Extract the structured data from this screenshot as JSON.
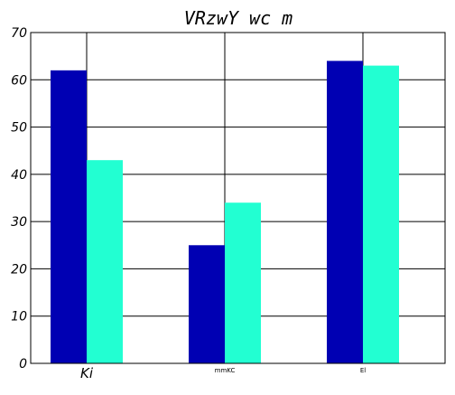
{
  "chart_data": {
    "type": "bar",
    "title": "VRzwY  wc m",
    "xlabel": "",
    "ylabel": "",
    "categories": [
      "Ki",
      "mmKC",
      "El"
    ],
    "series": [
      {
        "values": [
          62,
          25,
          64
        ],
        "color": "#0000b3"
      },
      {
        "values": [
          43,
          34,
          63
        ],
        "color": "#22ffd2"
      }
    ],
    "ylim": [
      0,
      70
    ],
    "yticks": [
      0,
      10,
      20,
      30,
      40,
      50,
      60,
      70
    ],
    "ytick_labels": [
      "0",
      "10",
      "20",
      "30",
      "40",
      "50",
      "60",
      "70"
    ],
    "grid": true,
    "legend": "none"
  }
}
